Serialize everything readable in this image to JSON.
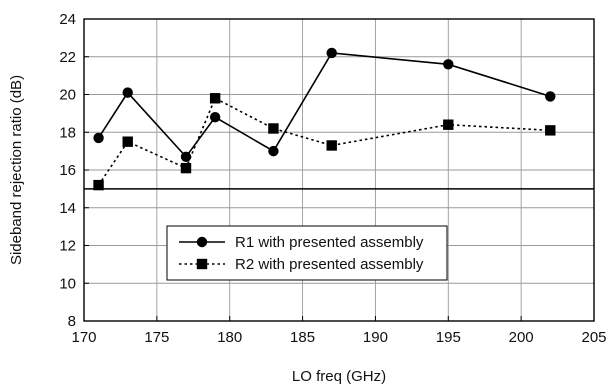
{
  "chart_data": {
    "type": "line",
    "title": "",
    "xlabel": "LO freq  (GHz)",
    "ylabel": "Sideband rejection ratio (dB)",
    "xlim": [
      170,
      205
    ],
    "ylim": [
      8,
      24
    ],
    "x_ticks": [
      170,
      175,
      180,
      185,
      190,
      195,
      200,
      205
    ],
    "y_ticks": [
      8,
      10,
      12,
      14,
      16,
      18,
      20,
      22,
      24
    ],
    "grid": true,
    "reference_line": 15,
    "legend_position": "lower-left",
    "series": [
      {
        "name": "R1 with presented assembly",
        "marker": "circle",
        "line_style": "solid",
        "x": [
          171,
          173,
          177,
          179,
          183,
          187,
          195,
          202
        ],
        "y": [
          17.7,
          20.1,
          16.7,
          18.8,
          17.0,
          22.2,
          21.6,
          19.9
        ]
      },
      {
        "name": "R2 with presented assembly",
        "marker": "square",
        "line_style": "dotted",
        "x": [
          171,
          173,
          177,
          179,
          183,
          187,
          195,
          202
        ],
        "y": [
          15.2,
          17.5,
          16.1,
          19.8,
          18.2,
          17.3,
          18.4,
          18.1
        ]
      }
    ]
  }
}
